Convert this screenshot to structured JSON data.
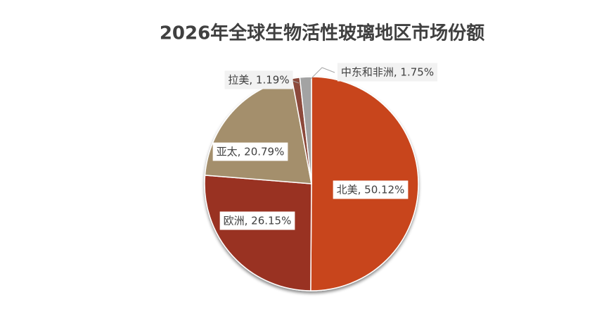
{
  "chart_data": {
    "type": "pie",
    "title": "2026年全球生物活性玻璃地区市场份额",
    "values": [
      50.12,
      26.15,
      20.79,
      1.19,
      1.75
    ],
    "value_labels": [
      "北美, 50.12%",
      "欧洲, 26.15%",
      "亚太, 20.79%",
      "拉美, 1.19%",
      "中东和非洲, 1.75%"
    ],
    "colors": [
      "#c8451b",
      "#993024",
      "#a48f6c",
      "#8c4a3b",
      "#a3a3a3"
    ]
  }
}
